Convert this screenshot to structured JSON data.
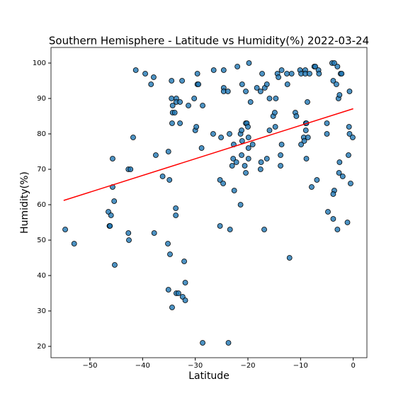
{
  "chart_data": {
    "type": "scatter",
    "title": "Southern Hemisphere - Latitude vs Humidity(%) 2022-03-24",
    "x_label": "Latitude",
    "y_label": "Humidity(%)",
    "xlim": [
      -57.4,
      2.6
    ],
    "ylim": [
      16.8,
      104.4
    ],
    "xticks": [
      {
        "value": -50,
        "label": "−50"
      },
      {
        "value": -40,
        "label": "−40"
      },
      {
        "value": -30,
        "label": "−30"
      },
      {
        "value": -20,
        "label": "−20"
      },
      {
        "value": -10,
        "label": "−10"
      },
      0
    ],
    "yticks": [
      20,
      30,
      40,
      50,
      60,
      70,
      80,
      90,
      100
    ],
    "color": "#1f77b4",
    "regression": {
      "x": [
        -55,
        0
      ],
      "y": [
        61.2,
        87.1
      ],
      "color": "#ff0000"
    },
    "x": [
      -54.7,
      -53,
      -45.7,
      -45.7,
      -45.4,
      -45.3,
      -46.5,
      -46,
      -46.3,
      -46.2,
      -42.7,
      -42.3,
      -42.7,
      -42.6,
      -41.8,
      -41.3,
      -39.5,
      -38.4,
      -37.9,
      -37.5,
      -37.8,
      -36.2,
      -35.2,
      -35.1,
      -34.9,
      -34.8,
      -35.1,
      -34.4,
      -34.5,
      -34.5,
      -34.3,
      -34.3,
      -33.9,
      -34.4,
      -33.6,
      -33.6,
      -32.9,
      -32.9,
      -33.7,
      -33.7,
      -33.6,
      -33.2,
      -32.5,
      -32.1,
      -31.9,
      -32.4,
      -31.9,
      -31.3,
      -30.2,
      -30,
      -29.8,
      -29.6,
      -29.6,
      -29.4,
      -28.6,
      -28.8,
      -28.6,
      -26.5,
      -26.6,
      -25.3,
      -25.3,
      -25.1,
      -24.6,
      -24.6,
      -24.6,
      -24.7,
      -23.8,
      -23.5,
      -23.4,
      -23.7,
      -22.8,
      -23,
      -22.2,
      -22.6,
      -22.7,
      -22,
      -21.4,
      -21.2,
      -21.1,
      -21.2,
      -21.4,
      -21.1,
      -20.4,
      -20.6,
      -20.4,
      -20.4,
      -20.2,
      -20,
      -19.9,
      -19.9,
      -19.9,
      -19.8,
      -19.5,
      -19.1,
      -18.3,
      -17.6,
      -17.5,
      -17.6,
      -17.3,
      -16.8,
      -16.9,
      -16.4,
      -16.4,
      -15.9,
      -15.9,
      -15.2,
      -14.9,
      -14.8,
      -14.7,
      -14.4,
      -14.2,
      -13.8,
      -13.8,
      -13.6,
      -13.6,
      -12.6,
      -12.5,
      -12.1,
      -11.7,
      -11,
      -10.8,
      -10.1,
      -9.9,
      -9.9,
      -9.4,
      -9.3,
      -9.1,
      -9.1,
      -9,
      -9,
      -8.9,
      -8.9,
      -8.7,
      -8.6,
      -8.3,
      -7.9,
      -7.4,
      -7.2,
      -6.9,
      -6.6,
      -6.5,
      -5,
      -5,
      -4.8,
      -4,
      -3.6,
      -3.8,
      -3.8,
      -3.6,
      -3.8,
      -3.2,
      -3,
      -3,
      -2.8,
      -2.7,
      -2.6,
      -2.6,
      -2.4,
      -2.2,
      -2,
      -1.1,
      -0.9,
      -0.8,
      -0.7,
      -0.5,
      -0.7,
      -0.1
    ],
    "values": [
      53,
      49,
      73,
      65,
      61,
      43,
      58,
      57,
      54,
      54,
      70,
      70,
      52,
      50,
      79,
      98,
      97,
      94,
      96,
      74,
      52,
      68,
      49,
      75,
      67,
      46,
      36,
      31,
      95,
      90,
      88,
      86,
      86,
      83,
      90,
      89,
      89,
      83,
      59,
      57,
      35,
      35,
      95,
      44,
      38,
      34,
      33,
      88,
      90,
      81,
      82,
      97,
      94,
      94,
      88,
      76,
      21,
      98,
      80,
      67,
      54,
      79,
      98,
      93,
      92,
      66,
      92,
      80,
      53,
      21,
      73,
      71,
      72,
      64,
      77,
      99,
      80,
      81,
      78,
      74,
      60,
      94,
      92,
      71,
      69,
      83,
      83,
      82,
      79,
      76,
      73,
      100,
      89,
      77,
      93,
      92,
      72,
      70,
      97,
      93,
      53,
      94,
      73,
      81,
      90,
      85,
      86,
      82,
      90,
      97,
      96,
      74,
      71,
      98,
      77,
      97,
      94,
      45,
      97,
      86,
      85,
      98,
      97,
      77,
      79,
      78,
      98,
      97,
      81,
      83,
      83,
      73,
      89,
      79,
      97,
      65,
      99,
      99,
      67,
      98,
      97,
      80,
      83,
      58,
      100,
      100,
      95,
      56,
      64,
      63,
      94,
      53,
      99,
      90,
      69,
      72,
      91,
      97,
      97,
      68,
      55,
      74,
      82,
      80,
      66,
      92,
      79
    ]
  }
}
